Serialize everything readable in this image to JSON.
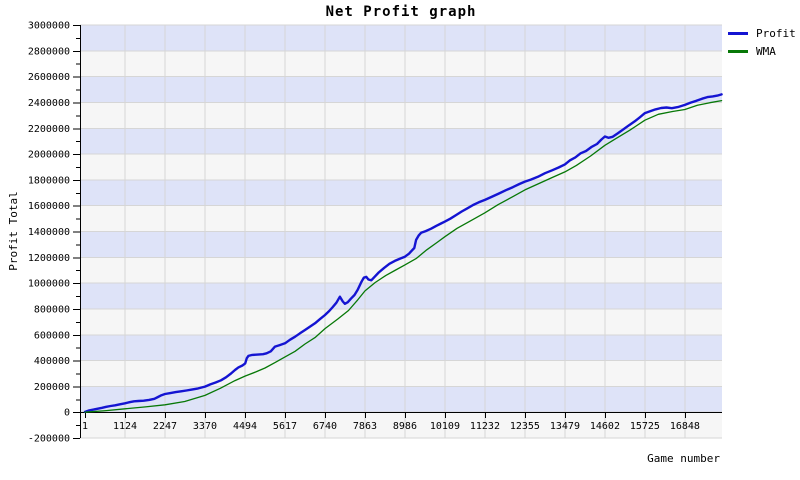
{
  "chart_data": {
    "type": "line",
    "title": "Net Profit graph",
    "xlabel": "Game number",
    "ylabel": "Profit Total",
    "xlim": [
      1,
      17890
    ],
    "ylim": [
      -200000,
      3000000
    ],
    "xticks": [
      1,
      1124,
      2247,
      3370,
      4494,
      5617,
      6740,
      7863,
      8986,
      10109,
      11232,
      12355,
      13479,
      14602,
      15725,
      16848
    ],
    "yticks": [
      -200000,
      0,
      200000,
      400000,
      600000,
      800000,
      1000000,
      1200000,
      1400000,
      1600000,
      1800000,
      2000000,
      2200000,
      2400000,
      2600000,
      2800000,
      3000000
    ],
    "y_minor_step": 100000,
    "grid": "on",
    "band_color_even": "#dee3f8",
    "band_color_odd": "#f6f6f6",
    "grid_color": "#d6d6d6",
    "axis_color": "#000000",
    "legend_position": "top-right",
    "series": [
      {
        "name": "Profit",
        "color": "#1414d2",
        "stroke_width": 2.4,
        "points": [
          [
            1,
            2000
          ],
          [
            120,
            14000
          ],
          [
            240,
            20000
          ],
          [
            360,
            27000
          ],
          [
            480,
            34000
          ],
          [
            600,
            42000
          ],
          [
            720,
            48000
          ],
          [
            850,
            53000
          ],
          [
            980,
            61000
          ],
          [
            1124,
            69000
          ],
          [
            1250,
            77000
          ],
          [
            1380,
            84000
          ],
          [
            1500,
            87000
          ],
          [
            1650,
            89000
          ],
          [
            1800,
            95000
          ],
          [
            1950,
            104000
          ],
          [
            2050,
            118000
          ],
          [
            2150,
            132000
          ],
          [
            2247,
            141000
          ],
          [
            2400,
            148000
          ],
          [
            2550,
            156000
          ],
          [
            2700,
            162000
          ],
          [
            2850,
            168000
          ],
          [
            3000,
            175000
          ],
          [
            3180,
            184000
          ],
          [
            3370,
            198000
          ],
          [
            3520,
            215000
          ],
          [
            3670,
            230000
          ],
          [
            3820,
            247000
          ],
          [
            3960,
            270000
          ],
          [
            4100,
            300000
          ],
          [
            4213,
            327000
          ],
          [
            4310,
            347000
          ],
          [
            4420,
            362000
          ],
          [
            4500,
            378000
          ],
          [
            4545,
            418000
          ],
          [
            4590,
            436000
          ],
          [
            4700,
            444000
          ],
          [
            4850,
            446000
          ],
          [
            5000,
            449000
          ],
          [
            5100,
            456000
          ],
          [
            5220,
            472000
          ],
          [
            5336,
            508000
          ],
          [
            5470,
            520000
          ],
          [
            5617,
            534000
          ],
          [
            5760,
            562000
          ],
          [
            5900,
            585000
          ],
          [
            6040,
            611000
          ],
          [
            6178,
            637000
          ],
          [
            6320,
            663000
          ],
          [
            6459,
            689000
          ],
          [
            6600,
            721000
          ],
          [
            6740,
            753000
          ],
          [
            6860,
            784000
          ],
          [
            6960,
            815000
          ],
          [
            7060,
            848000
          ],
          [
            7160,
            895000
          ],
          [
            7240,
            858000
          ],
          [
            7300,
            840000
          ],
          [
            7380,
            852000
          ],
          [
            7470,
            880000
          ],
          [
            7570,
            908000
          ],
          [
            7660,
            948000
          ],
          [
            7760,
            1008000
          ],
          [
            7830,
            1042000
          ],
          [
            7900,
            1048000
          ],
          [
            7960,
            1028000
          ],
          [
            8040,
            1022000
          ],
          [
            8130,
            1048000
          ],
          [
            8250,
            1082000
          ],
          [
            8400,
            1118000
          ],
          [
            8550,
            1150000
          ],
          [
            8700,
            1172000
          ],
          [
            8850,
            1190000
          ],
          [
            8986,
            1205000
          ],
          [
            9100,
            1228000
          ],
          [
            9190,
            1255000
          ],
          [
            9250,
            1272000
          ],
          [
            9300,
            1335000
          ],
          [
            9370,
            1368000
          ],
          [
            9440,
            1390000
          ],
          [
            9570,
            1403000
          ],
          [
            9720,
            1422000
          ],
          [
            9870,
            1444000
          ],
          [
            10000,
            1462000
          ],
          [
            10109,
            1477000
          ],
          [
            10260,
            1499000
          ],
          [
            10420,
            1527000
          ],
          [
            10580,
            1555000
          ],
          [
            10740,
            1580000
          ],
          [
            10900,
            1605000
          ],
          [
            11060,
            1626000
          ],
          [
            11232,
            1645000
          ],
          [
            11420,
            1668000
          ],
          [
            11620,
            1694000
          ],
          [
            11820,
            1720000
          ],
          [
            12020,
            1744000
          ],
          [
            12200,
            1768000
          ],
          [
            12355,
            1787000
          ],
          [
            12520,
            1802000
          ],
          [
            12720,
            1824000
          ],
          [
            12920,
            1852000
          ],
          [
            13120,
            1874000
          ],
          [
            13300,
            1896000
          ],
          [
            13479,
            1920000
          ],
          [
            13620,
            1952000
          ],
          [
            13770,
            1974000
          ],
          [
            13920,
            2006000
          ],
          [
            14070,
            2024000
          ],
          [
            14220,
            2054000
          ],
          [
            14380,
            2078000
          ],
          [
            14500,
            2112000
          ],
          [
            14602,
            2136000
          ],
          [
            14700,
            2126000
          ],
          [
            14820,
            2134000
          ],
          [
            14960,
            2160000
          ],
          [
            15120,
            2192000
          ],
          [
            15280,
            2224000
          ],
          [
            15440,
            2254000
          ],
          [
            15580,
            2284000
          ],
          [
            15725,
            2317000
          ],
          [
            15870,
            2332000
          ],
          [
            16020,
            2346000
          ],
          [
            16180,
            2357000
          ],
          [
            16330,
            2361000
          ],
          [
            16480,
            2355000
          ],
          [
            16650,
            2364000
          ],
          [
            16848,
            2381000
          ],
          [
            17010,
            2399000
          ],
          [
            17170,
            2413000
          ],
          [
            17330,
            2429000
          ],
          [
            17480,
            2441000
          ],
          [
            17630,
            2447000
          ],
          [
            17760,
            2453000
          ],
          [
            17880,
            2462000
          ]
        ]
      },
      {
        "name": "WMA",
        "color": "#077807",
        "stroke_width": 1.3,
        "points": [
          [
            1,
            0
          ],
          [
            600,
            12000
          ],
          [
            1124,
            26000
          ],
          [
            1700,
            41000
          ],
          [
            2247,
            57000
          ],
          [
            2800,
            83000
          ],
          [
            3370,
            130000
          ],
          [
            3800,
            185000
          ],
          [
            4213,
            245000
          ],
          [
            4494,
            280000
          ],
          [
            4800,
            312000
          ],
          [
            5055,
            342000
          ],
          [
            5336,
            384000
          ],
          [
            5617,
            428000
          ],
          [
            5900,
            472000
          ],
          [
            6178,
            528000
          ],
          [
            6459,
            578000
          ],
          [
            6740,
            648000
          ],
          [
            7100,
            722000
          ],
          [
            7400,
            788000
          ],
          [
            7660,
            870000
          ],
          [
            7863,
            940000
          ],
          [
            8150,
            1005000
          ],
          [
            8450,
            1060000
          ],
          [
            8700,
            1098000
          ],
          [
            8986,
            1141000
          ],
          [
            9300,
            1190000
          ],
          [
            9600,
            1258000
          ],
          [
            9900,
            1318000
          ],
          [
            10109,
            1360000
          ],
          [
            10450,
            1425000
          ],
          [
            10800,
            1478000
          ],
          [
            11232,
            1545000
          ],
          [
            11600,
            1608000
          ],
          [
            12000,
            1668000
          ],
          [
            12355,
            1722000
          ],
          [
            12750,
            1772000
          ],
          [
            13100,
            1815000
          ],
          [
            13479,
            1862000
          ],
          [
            13800,
            1912000
          ],
          [
            14200,
            1985000
          ],
          [
            14602,
            2068000
          ],
          [
            14900,
            2118000
          ],
          [
            15300,
            2185000
          ],
          [
            15725,
            2262000
          ],
          [
            16100,
            2308000
          ],
          [
            16500,
            2330000
          ],
          [
            16848,
            2345000
          ],
          [
            17200,
            2378000
          ],
          [
            17550,
            2398000
          ],
          [
            17880,
            2414000
          ]
        ]
      }
    ]
  }
}
